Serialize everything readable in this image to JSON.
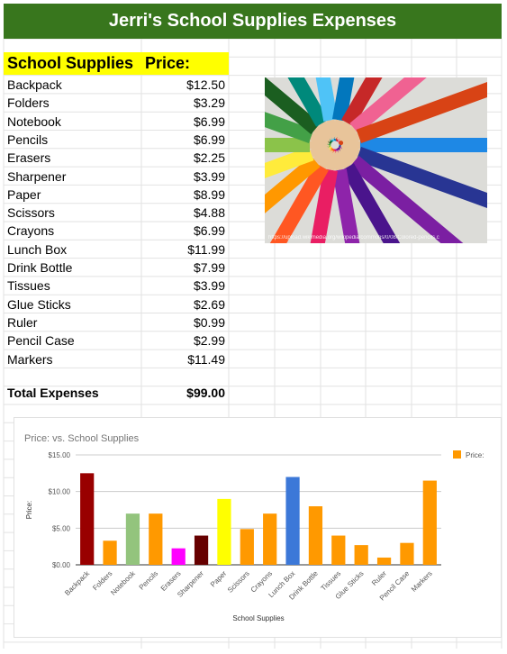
{
  "sheet": {
    "title": "Jerri's  School Supplies Expenses",
    "header_item": "School Supplies",
    "header_price": "Price:",
    "items": [
      {
        "name": "Backpack",
        "price": "$12.50"
      },
      {
        "name": "Folders",
        "price": "$3.29"
      },
      {
        "name": "Notebook",
        "price": "$6.99"
      },
      {
        "name": "Pencils",
        "price": "$6.99"
      },
      {
        "name": "Erasers",
        "price": "$2.25"
      },
      {
        "name": "Sharpener",
        "price": "$3.99"
      },
      {
        "name": "Paper",
        "price": "$8.99"
      },
      {
        "name": "Scissors",
        "price": "$4.88"
      },
      {
        "name": "Crayons",
        "price": "$6.99"
      },
      {
        "name": "Lunch Box",
        "price": "$11.99"
      },
      {
        "name": "Drink Bottle",
        "price": "$7.99"
      },
      {
        "name": "Tissues",
        "price": "$3.99"
      },
      {
        "name": "Glue Sticks",
        "price": "$2.69"
      },
      {
        "name": "Ruler",
        "price": "$0.99"
      },
      {
        "name": "Pencil Case",
        "price": "$2.99"
      },
      {
        "name": "Markers",
        "price": "$11.49"
      }
    ],
    "total_label": "Total Expenses",
    "total_value": "$99.00"
  },
  "image": {
    "caption": "https://upload.wikimedia.org/wikipedia/commons/0/08/Colored-pencils.c"
  },
  "chart_data": {
    "type": "bar",
    "title": "Price: vs. School Supplies",
    "xlabel": "School Supplies",
    "ylabel": "Price:",
    "legend": "Price:",
    "legend_position": "top-right",
    "ylim": [
      0,
      15
    ],
    "yticks": [
      "$0.00",
      "$5.00",
      "$10.00",
      "$15.00"
    ],
    "categories": [
      "Backpack",
      "Folders",
      "Notebook",
      "Pencils",
      "Erasers",
      "Sharpener",
      "Paper",
      "Scissors",
      "Crayons",
      "Lunch Box",
      "Drink Bottle",
      "Tissues",
      "Glue Sticks",
      "Ruler",
      "Pencil Case",
      "Markers"
    ],
    "values": [
      12.5,
      3.29,
      6.99,
      6.99,
      2.25,
      3.99,
      8.99,
      4.88,
      6.99,
      11.99,
      7.99,
      3.99,
      2.69,
      0.99,
      2.99,
      11.49
    ],
    "colors": [
      "#990000",
      "#ff9900",
      "#93c47d",
      "#ff9900",
      "#ff00ff",
      "#660000",
      "#ffff00",
      "#ff9900",
      "#ff9900",
      "#3c78d8",
      "#ff9900",
      "#ff9900",
      "#ff9900",
      "#ff9900",
      "#ff9900",
      "#ff9900"
    ],
    "legend_color": "#ff9900"
  }
}
